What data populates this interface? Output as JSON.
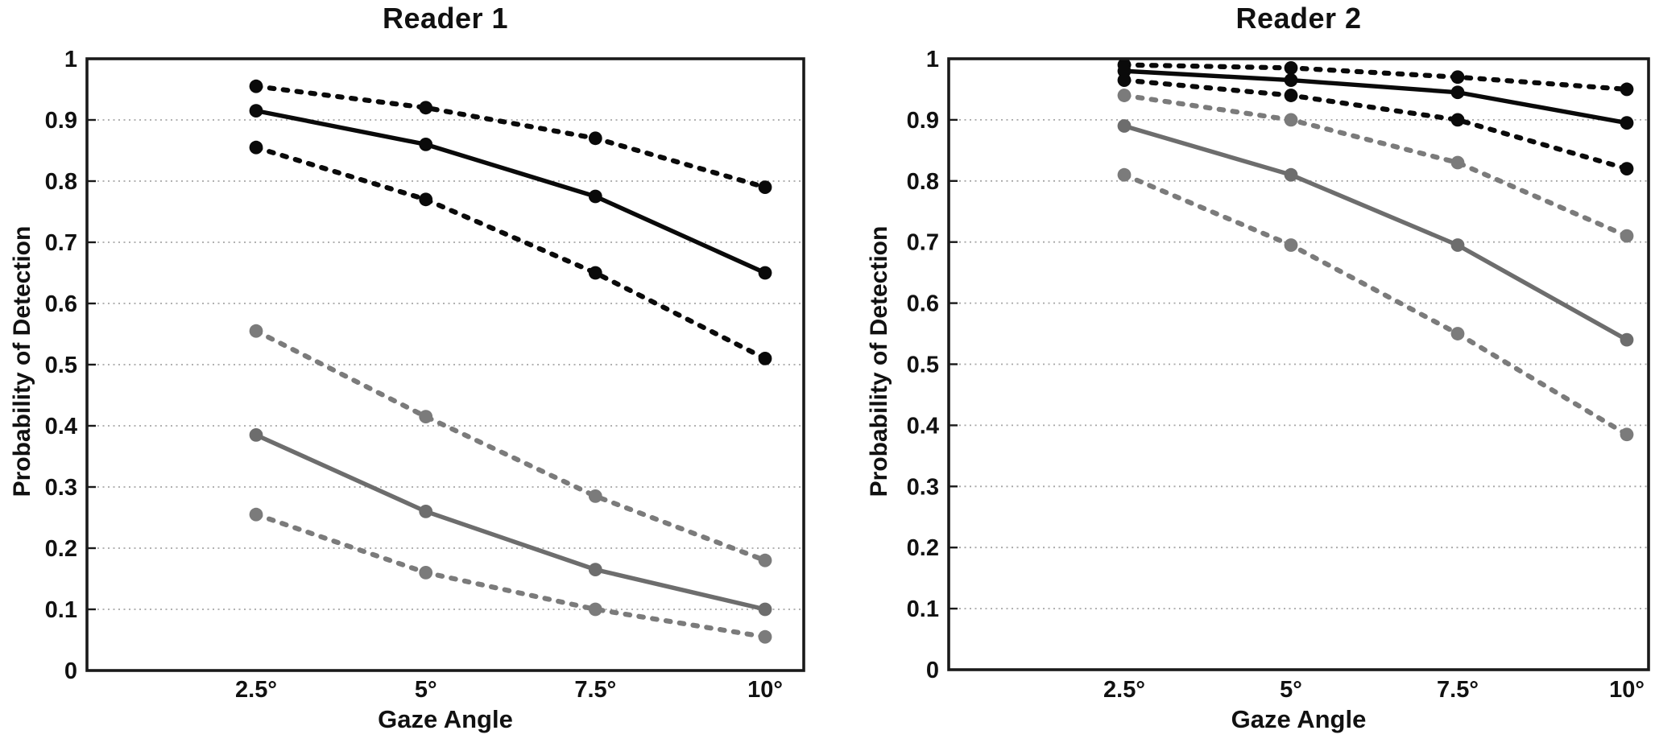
{
  "chart_data": [
    {
      "type": "line",
      "title": "Reader 1",
      "xlabel": "Gaze Angle",
      "ylabel": "Probability of Detection",
      "categories": [
        "2.5°",
        "5°",
        "7.5°",
        "10°"
      ],
      "yticks": [
        "1",
        "0.9",
        "0.8",
        "0.7",
        "0.6",
        "0.5",
        "0.4",
        "0.3",
        "0.2",
        "0.1",
        "0"
      ],
      "ylim": [
        0,
        1
      ],
      "grid": true,
      "legend": null,
      "series": [
        {
          "name": "black-dashed-upper",
          "style": "dashed",
          "color": "#0a0a0a",
          "values": [
            0.955,
            0.92,
            0.87,
            0.79
          ]
        },
        {
          "name": "black-solid",
          "style": "solid",
          "color": "#0a0a0a",
          "values": [
            0.915,
            0.86,
            0.775,
            0.65
          ]
        },
        {
          "name": "black-dashed-lower",
          "style": "dashed",
          "color": "#0a0a0a",
          "values": [
            0.855,
            0.77,
            0.65,
            0.51
          ]
        },
        {
          "name": "gray-dashed-upper",
          "style": "dashed",
          "color": "#7b7b7b",
          "values": [
            0.555,
            0.415,
            0.285,
            0.18
          ]
        },
        {
          "name": "gray-solid",
          "style": "solid",
          "color": "#6d6d6d",
          "values": [
            0.385,
            0.26,
            0.165,
            0.1
          ]
        },
        {
          "name": "gray-dashed-lower",
          "style": "dashed",
          "color": "#7b7b7b",
          "values": [
            0.255,
            0.16,
            0.1,
            0.055
          ]
        }
      ]
    },
    {
      "type": "line",
      "title": "Reader 2",
      "xlabel": "Gaze Angle",
      "ylabel": "Probability of Detection",
      "categories": [
        "2.5°",
        "5°",
        "7.5°",
        "10°"
      ],
      "yticks": [
        "1",
        "0.9",
        "0.8",
        "0.7",
        "0.6",
        "0.5",
        "0.4",
        "0.3",
        "0.2",
        "0.1",
        "0"
      ],
      "ylim": [
        0,
        1
      ],
      "grid": true,
      "legend": null,
      "series": [
        {
          "name": "black-dashed-upper",
          "style": "dashed",
          "color": "#0a0a0a",
          "values": [
            0.99,
            0.985,
            0.97,
            0.95
          ]
        },
        {
          "name": "black-solid",
          "style": "solid",
          "color": "#0a0a0a",
          "values": [
            0.98,
            0.965,
            0.945,
            0.895
          ]
        },
        {
          "name": "black-dashed-lower",
          "style": "dashed",
          "color": "#0a0a0a",
          "values": [
            0.965,
            0.94,
            0.9,
            0.82
          ]
        },
        {
          "name": "gray-dashed-upper",
          "style": "dashed",
          "color": "#7b7b7b",
          "values": [
            0.94,
            0.9,
            0.83,
            0.71
          ]
        },
        {
          "name": "gray-solid",
          "style": "solid",
          "color": "#6d6d6d",
          "values": [
            0.89,
            0.81,
            0.695,
            0.54
          ]
        },
        {
          "name": "gray-dashed-lower",
          "style": "dashed",
          "color": "#7b7b7b",
          "values": [
            0.81,
            0.695,
            0.55,
            0.385
          ]
        }
      ]
    }
  ],
  "colors": {
    "background": "#ffffff",
    "axis": "#1a1a1a",
    "gridline": "#a6a6a6",
    "black_series": "#0a0a0a",
    "gray_series": "#6d6d6d"
  }
}
